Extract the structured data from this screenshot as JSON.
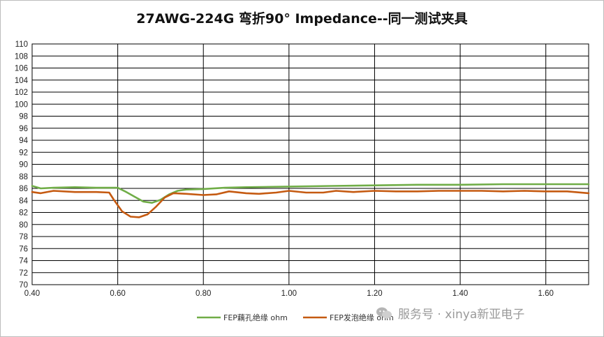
{
  "chart_data": {
    "type": "line",
    "title": "27AWG-224G 弯折90° Impedance--同一测试夹具",
    "xlim": [
      0.4,
      1.7
    ],
    "ylim": [
      70,
      110
    ],
    "x_ticks": [
      "0.40",
      "0.60",
      "0.80",
      "1.00",
      "1.20",
      "1.40",
      "1.60"
    ],
    "y_ticks": [
      "70",
      "72",
      "74",
      "76",
      "78",
      "80",
      "82",
      "84",
      "86",
      "88",
      "90",
      "92",
      "94",
      "96",
      "98",
      "100",
      "102",
      "104",
      "106",
      "108",
      "110"
    ],
    "grid": true,
    "legend_position": "bottom",
    "series": [
      {
        "name": "FEP藕孔绝缘 ohm",
        "color": "#70ad47",
        "points": [
          [
            0.4,
            86.4
          ],
          [
            0.42,
            86.0
          ],
          [
            0.45,
            86.1
          ],
          [
            0.5,
            86.2
          ],
          [
            0.55,
            86.1
          ],
          [
            0.6,
            86.1
          ],
          [
            0.62,
            85.4
          ],
          [
            0.64,
            84.6
          ],
          [
            0.66,
            83.8
          ],
          [
            0.68,
            83.6
          ],
          [
            0.7,
            84.1
          ],
          [
            0.72,
            85.0
          ],
          [
            0.74,
            85.6
          ],
          [
            0.76,
            85.8
          ],
          [
            0.8,
            85.9
          ],
          [
            0.85,
            86.1
          ],
          [
            0.9,
            86.2
          ],
          [
            1.0,
            86.3
          ],
          [
            1.1,
            86.4
          ],
          [
            1.2,
            86.5
          ],
          [
            1.3,
            86.6
          ],
          [
            1.4,
            86.6
          ],
          [
            1.5,
            86.7
          ],
          [
            1.6,
            86.7
          ],
          [
            1.7,
            86.7
          ]
        ]
      },
      {
        "name": "FEP发泡绝缘 ohm",
        "color": "#c55a11",
        "points": [
          [
            0.4,
            85.4
          ],
          [
            0.42,
            85.2
          ],
          [
            0.45,
            85.6
          ],
          [
            0.5,
            85.4
          ],
          [
            0.55,
            85.4
          ],
          [
            0.58,
            85.3
          ],
          [
            0.59,
            84.2
          ],
          [
            0.61,
            82.2
          ],
          [
            0.63,
            81.3
          ],
          [
            0.65,
            81.2
          ],
          [
            0.67,
            81.7
          ],
          [
            0.69,
            83.0
          ],
          [
            0.71,
            84.5
          ],
          [
            0.73,
            85.2
          ],
          [
            0.76,
            85.1
          ],
          [
            0.8,
            84.9
          ],
          [
            0.83,
            85.0
          ],
          [
            0.86,
            85.5
          ],
          [
            0.9,
            85.2
          ],
          [
            0.93,
            85.1
          ],
          [
            0.97,
            85.3
          ],
          [
            1.0,
            85.6
          ],
          [
            1.04,
            85.3
          ],
          [
            1.08,
            85.3
          ],
          [
            1.11,
            85.6
          ],
          [
            1.15,
            85.4
          ],
          [
            1.2,
            85.6
          ],
          [
            1.25,
            85.5
          ],
          [
            1.3,
            85.5
          ],
          [
            1.35,
            85.6
          ],
          [
            1.4,
            85.6
          ],
          [
            1.45,
            85.6
          ],
          [
            1.5,
            85.5
          ],
          [
            1.55,
            85.6
          ],
          [
            1.6,
            85.5
          ],
          [
            1.65,
            85.5
          ],
          [
            1.7,
            85.2
          ]
        ]
      }
    ]
  },
  "watermark": {
    "text": "服务号 · xinya新亚电子",
    "icon": "wechat-bubble-icon"
  }
}
